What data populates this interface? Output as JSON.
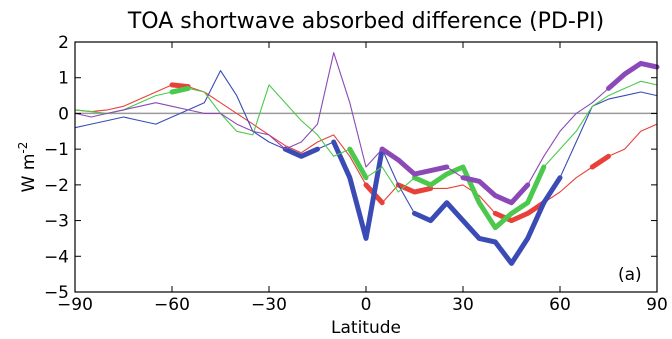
{
  "chart_data": {
    "type": "line",
    "title": "TOA shortwave absorbed difference (PD-PI)",
    "xlabel": "Latitude",
    "ylabel": "W m",
    "ylabel_sup": "-2",
    "panel_label": "(a)",
    "xlim": [
      -90,
      90
    ],
    "ylim": [
      -5,
      2
    ],
    "xticks": [
      "−90",
      "−60",
      "−30",
      "0",
      "30",
      "60",
      "90"
    ],
    "yticks": [
      "2",
      "1",
      "0",
      "−1",
      "−2",
      "−3",
      "−4",
      "−5"
    ],
    "zero_line": true,
    "series": [
      {
        "color": "#e8413a",
        "x": [
          -90,
          -85,
          -80,
          -75,
          -70,
          -65,
          -60,
          -55,
          -50,
          -45,
          -40,
          -35,
          -30,
          -25,
          -20,
          -15,
          -10,
          -5,
          0,
          5,
          10,
          15,
          20,
          25,
          30,
          35,
          40,
          45,
          50,
          55,
          60,
          65,
          70,
          75,
          80,
          85,
          90
        ],
        "y": [
          0.1,
          0.05,
          0.1,
          0.2,
          0.4,
          0.6,
          0.8,
          0.75,
          0.6,
          0.3,
          0.0,
          -0.3,
          -0.6,
          -0.9,
          -1.1,
          -0.8,
          -0.6,
          -1.2,
          -2.0,
          -2.5,
          -2.0,
          -2.2,
          -2.1,
          -2.1,
          -2.0,
          -2.3,
          -2.8,
          -3.0,
          -2.8,
          -2.5,
          -2.2,
          -1.8,
          -1.5,
          -1.2,
          -1.0,
          -0.5,
          -0.3
        ],
        "bold": [
          [
            -60,
            -55
          ],
          [
            0,
            5
          ],
          [
            10,
            20
          ],
          [
            40,
            55
          ],
          [
            70,
            75
          ]
        ]
      },
      {
        "color": "#3a4bb5",
        "x": [
          -90,
          -85,
          -80,
          -75,
          -70,
          -65,
          -60,
          -55,
          -50,
          -45,
          -40,
          -35,
          -30,
          -25,
          -20,
          -15,
          -10,
          -5,
          0,
          5,
          10,
          15,
          20,
          25,
          30,
          35,
          40,
          45,
          50,
          55,
          60,
          65,
          70,
          75,
          80,
          85,
          90
        ],
        "y": [
          -0.4,
          -0.3,
          -0.2,
          -0.1,
          -0.2,
          -0.3,
          -0.1,
          0.1,
          0.3,
          1.2,
          0.5,
          -0.5,
          -0.8,
          -1.0,
          -1.2,
          -1.0,
          -0.8,
          -1.8,
          -3.5,
          -1.0,
          -2.0,
          -2.8,
          -3.0,
          -2.5,
          -3.0,
          -3.5,
          -3.6,
          -4.2,
          -3.5,
          -2.5,
          -1.8,
          -0.8,
          0.2,
          0.4,
          0.5,
          0.6,
          0.5
        ],
        "bold": [
          [
            -25,
            -15
          ],
          [
            -10,
            7
          ],
          [
            12,
            60
          ]
        ]
      },
      {
        "color": "#4cc94c",
        "x": [
          -90,
          -85,
          -80,
          -75,
          -70,
          -65,
          -60,
          -55,
          -50,
          -45,
          -40,
          -35,
          -30,
          -25,
          -20,
          -15,
          -10,
          -5,
          0,
          5,
          10,
          15,
          20,
          25,
          30,
          35,
          40,
          45,
          50,
          55,
          60,
          65,
          70,
          75,
          80,
          85,
          90
        ],
        "y": [
          0.1,
          0.05,
          0.0,
          0.1,
          0.3,
          0.5,
          0.6,
          0.7,
          0.6,
          0.0,
          -0.5,
          -0.6,
          0.8,
          0.3,
          -0.2,
          -0.6,
          -1.2,
          -1.0,
          -1.8,
          -1.5,
          -2.2,
          -1.8,
          -2.0,
          -1.7,
          -1.5,
          -2.5,
          -3.2,
          -2.8,
          -2.5,
          -1.5,
          -1.0,
          -0.5,
          0.2,
          0.5,
          0.7,
          0.9,
          0.8
        ],
        "bold": [
          [
            -60,
            -52
          ],
          [
            -5,
            0
          ],
          [
            15,
            55
          ],
          [
            78,
            82
          ]
        ]
      },
      {
        "color": "#8b49b8",
        "x": [
          -90,
          -85,
          -80,
          -75,
          -70,
          -65,
          -60,
          -55,
          -50,
          -45,
          -40,
          -35,
          -30,
          -25,
          -20,
          -15,
          -10,
          -5,
          0,
          5,
          10,
          15,
          20,
          25,
          30,
          35,
          40,
          45,
          50,
          55,
          60,
          65,
          70,
          75,
          80,
          85,
          90
        ],
        "y": [
          0.0,
          -0.1,
          0.0,
          0.1,
          0.2,
          0.3,
          0.2,
          0.1,
          0.0,
          0.0,
          -0.3,
          -0.5,
          -0.6,
          -1.0,
          -0.8,
          -0.3,
          1.7,
          0.3,
          -1.5,
          -1.0,
          -1.3,
          -1.7,
          -1.6,
          -1.5,
          -1.8,
          -1.9,
          -2.3,
          -2.5,
          -2.0,
          -1.2,
          -0.5,
          0.0,
          0.3,
          0.7,
          1.1,
          1.4,
          1.3
        ],
        "bold": [
          [
            5,
            25
          ],
          [
            30,
            50
          ],
          [
            75,
            90
          ]
        ]
      }
    ]
  }
}
